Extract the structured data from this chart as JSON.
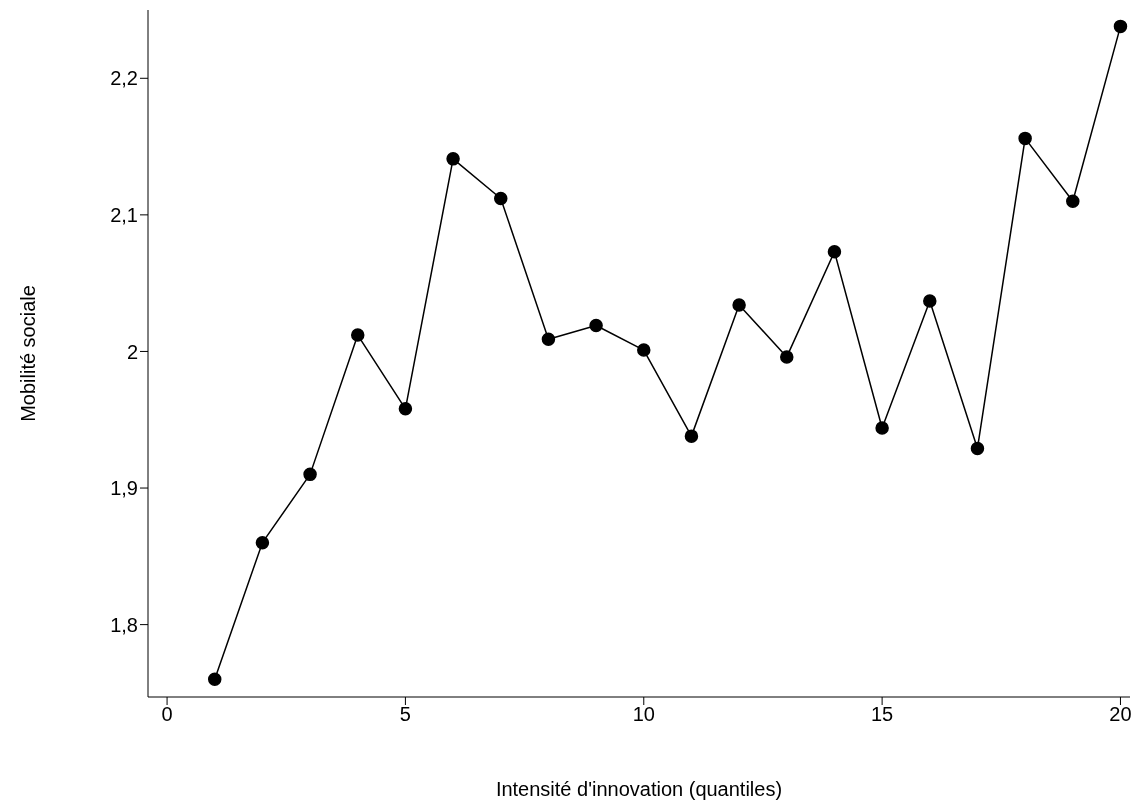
{
  "chart_data": {
    "type": "line",
    "xlabel": "Intensité d'innovation (quantiles)",
    "ylabel": "Mobilité sociale",
    "x": [
      1,
      2,
      3,
      4,
      5,
      6,
      7,
      8,
      9,
      10,
      11,
      12,
      13,
      14,
      15,
      16,
      17,
      18,
      19,
      20
    ],
    "series": [
      {
        "color": "#000000",
        "values": [
          1.76,
          1.86,
          1.91,
          2.012,
          1.958,
          2.141,
          2.112,
          2.009,
          2.019,
          2.001,
          1.938,
          2.034,
          1.996,
          2.073,
          1.944,
          2.037,
          1.929,
          2.156,
          2.11,
          2.238
        ]
      }
    ],
    "xlim": [
      -0.4,
      20.2
    ],
    "ylim": [
      1.747,
      2.25
    ],
    "xticks": [
      0,
      5,
      10,
      15,
      20
    ],
    "yticks": [
      {
        "value": 1.8,
        "label": "1,8"
      },
      {
        "value": 1.9,
        "label": "1,9"
      },
      2,
      {
        "value": 2.1,
        "label": "2,1"
      },
      {
        "value": 2.2,
        "label": "2,2"
      }
    ],
    "grid": false,
    "marker": "circle",
    "line_style": "solid"
  }
}
